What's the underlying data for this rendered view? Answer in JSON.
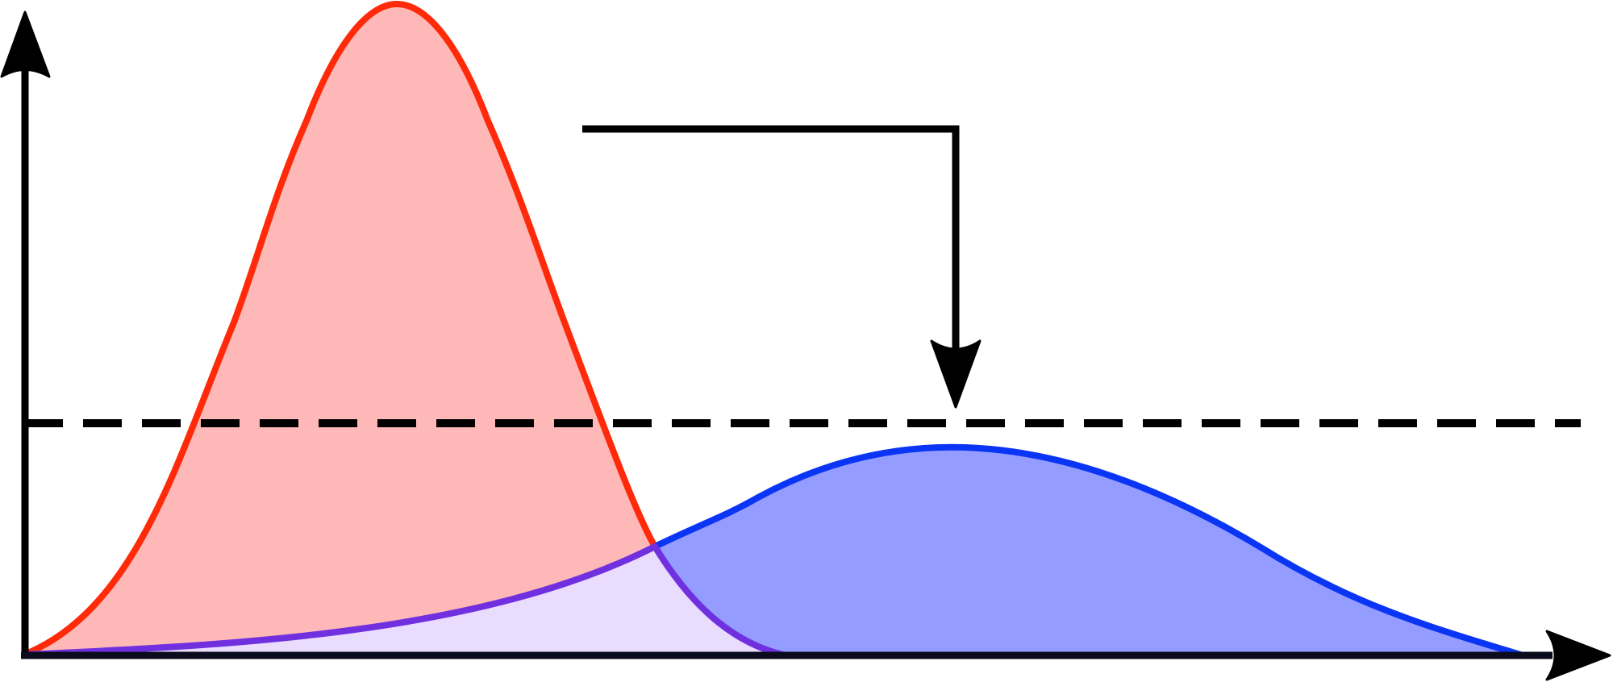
{
  "diagram": {
    "type": "overlapping-distribution-curves",
    "title": "",
    "x_axis": {
      "label": ""
    },
    "y_axis": {
      "label": ""
    },
    "threshold_line": {
      "style": "dashed",
      "color": "#000000"
    },
    "callout_arrow": {
      "points_to": "threshold-line",
      "color": "#000000"
    },
    "curves": [
      {
        "name": "",
        "stroke": "#ff2a0a",
        "fill": "#ffb8b8",
        "shape": "narrow-tall"
      },
      {
        "name": "",
        "stroke": "#0a35f5",
        "fill": "#949cff",
        "shape": "wide-low"
      }
    ],
    "overlap_region": {
      "stroke": "#7030e0",
      "fill": "#e9dcff"
    }
  }
}
